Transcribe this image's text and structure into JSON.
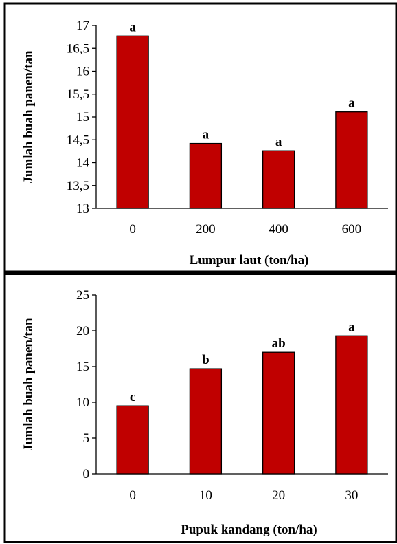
{
  "chart_data": [
    {
      "type": "bar",
      "categories": [
        "0",
        "200",
        "400",
        "600"
      ],
      "values": [
        16.77,
        14.42,
        14.26,
        15.11
      ],
      "data_labels": [
        "a",
        "a",
        "a",
        "a"
      ],
      "xlabel": "Lumpur laut (ton/ha)",
      "ylabel": "Jumlah buah panen/tan",
      "ylim": [
        13,
        17
      ],
      "yticks": [
        "13",
        "13,5",
        "14",
        "14,5",
        "15",
        "15,5",
        "16",
        "16,5",
        "17"
      ],
      "grid": false,
      "bar_color": "#C00000",
      "bar_edge_color": "#000000"
    },
    {
      "type": "bar",
      "categories": [
        "0",
        "10",
        "20",
        "30"
      ],
      "values": [
        9.5,
        14.7,
        17.0,
        19.3
      ],
      "data_labels": [
        "c",
        "b",
        "ab",
        "a"
      ],
      "xlabel": "Pupuk kandang (ton/ha)",
      "ylabel": "Jumlah buah panen/tan",
      "ylim": [
        0,
        25
      ],
      "yticks": [
        "0",
        "5",
        "10",
        "15",
        "20",
        "25"
      ],
      "grid": false,
      "bar_color": "#C00000",
      "bar_edge_color": "#000000"
    }
  ]
}
